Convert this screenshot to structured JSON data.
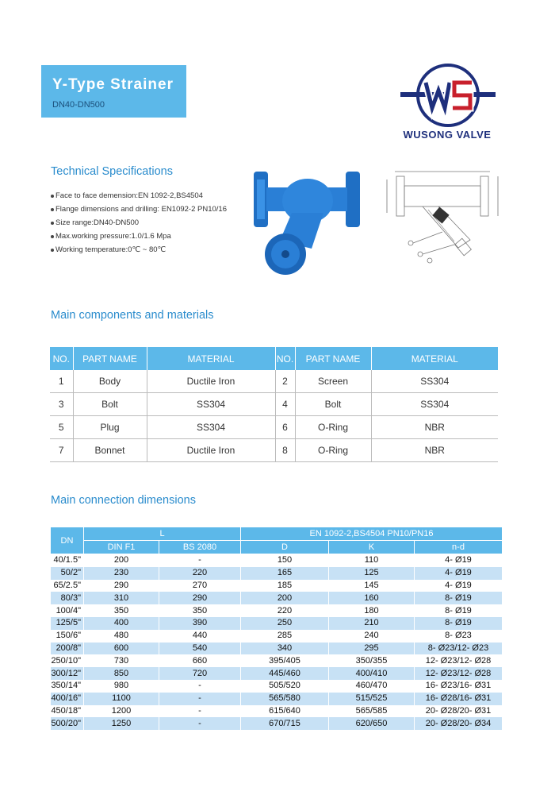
{
  "header": {
    "title": "Y-Type Strainer",
    "subtitle": "DN40-DN500"
  },
  "logo": {
    "text": "WUSONG VALVE"
  },
  "tech_specs": {
    "heading": "Technical Specifications",
    "items": [
      "Face to face demеnsion:EN 1092-2,BS4504",
      "Flange dimensions and drilling: EN1092-2 PN10/16",
      "Size range:DN40-DN500",
      "Max.working pressure:1.0/1.6 Mpa",
      "Working temperature:0℃ ~ 80℃"
    ]
  },
  "components": {
    "heading": "Main components and materials",
    "header": [
      "NO.",
      "PART NAME",
      "MATERIAL",
      "NO.",
      "PART NAME",
      "MATERIAL"
    ],
    "rows": [
      [
        1,
        "Body",
        "Ductile Iron",
        2,
        "Screen",
        "SS304"
      ],
      [
        3,
        "Bolt",
        "SS304",
        4,
        "Bolt",
        "SS304"
      ],
      [
        5,
        "Plug",
        "SS304",
        6,
        "O-Ring",
        "NBR"
      ],
      [
        7,
        "Bonnet",
        "Ductile Iron",
        8,
        "O-Ring",
        "NBR"
      ]
    ]
  },
  "dimensions": {
    "heading": "Main connection dimensions",
    "header": {
      "dn": "DN",
      "l": "L",
      "standard": "EN 1092-2,BS4504 PN10/PN16"
    },
    "subheader": [
      "DIN F1",
      "BS 2080",
      "D",
      "K",
      "n-d"
    ],
    "rows": [
      [
        "40/1.5\"",
        "200",
        "-",
        "150",
        "110",
        "4- Ø19"
      ],
      [
        "50/2\"",
        "230",
        "220",
        "165",
        "125",
        "4- Ø19"
      ],
      [
        "65/2.5\"",
        "290",
        "270",
        "185",
        "145",
        "4- Ø19"
      ],
      [
        "80/3\"",
        "310",
        "290",
        "200",
        "160",
        "8- Ø19"
      ],
      [
        "100/4\"",
        "350",
        "350",
        "220",
        "180",
        "8- Ø19"
      ],
      [
        "125/5\"",
        "400",
        "390",
        "250",
        "210",
        "8- Ø19"
      ],
      [
        "150/6\"",
        "480",
        "440",
        "285",
        "240",
        "8- Ø23"
      ],
      [
        "200/8\"",
        "600",
        "540",
        "340",
        "295",
        "8- Ø23/12- Ø23"
      ],
      [
        "250/10\"",
        "730",
        "660",
        "395/405",
        "350/355",
        "12- Ø23/12- Ø28"
      ],
      [
        "300/12\"",
        "850",
        "720",
        "445/460",
        "400/410",
        "12- Ø23/12- Ø28"
      ],
      [
        "350/14\"",
        "980",
        "-",
        "505/520",
        "460/470",
        "16- Ø23/16- Ø31"
      ],
      [
        "400/16\"",
        "1100",
        "-",
        "565/580",
        "515/525",
        "16- Ø28/16- Ø31"
      ],
      [
        "450/18\"",
        "1200",
        "-",
        "615/640",
        "565/585",
        "20- Ø28/20- Ø31"
      ],
      [
        "500/20\"",
        "1250",
        "-",
        "670/715",
        "620/650",
        "20- Ø28/20- Ø34"
      ]
    ]
  }
}
